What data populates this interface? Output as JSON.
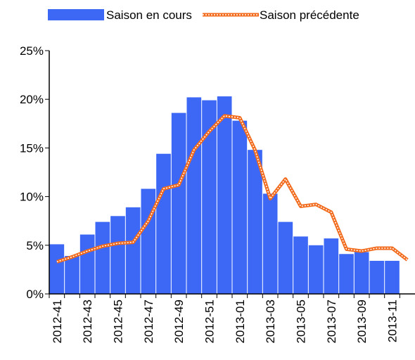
{
  "chart_data": {
    "type": "bar-line",
    "categories": [
      "2012-41",
      null,
      "2012-43",
      null,
      "2012-45",
      null,
      "2012-47",
      null,
      "2012-49",
      null,
      "2012-51",
      null,
      "2013-01",
      null,
      "2013-03",
      null,
      "2013-05",
      null,
      "2013-07",
      null,
      "2013-09",
      null,
      "2013-11",
      null
    ],
    "series": [
      {
        "name": "Saison en cours",
        "type": "bar",
        "color": "#3d68f5",
        "values": [
          5.1,
          3.9,
          6.1,
          7.4,
          8.0,
          8.9,
          10.8,
          14.4,
          18.6,
          20.2,
          19.9,
          20.3,
          17.8,
          14.8,
          10.3,
          7.4,
          5.9,
          5.0,
          5.7,
          4.1,
          4.3,
          3.4,
          3.4,
          null
        ]
      },
      {
        "name": "Saison précédente",
        "type": "line",
        "color": "#f26a1b",
        "values": [
          3.3,
          3.8,
          4.4,
          4.9,
          5.2,
          5.3,
          7.5,
          10.8,
          11.2,
          14.8,
          16.7,
          18.3,
          18.1,
          14.8,
          9.8,
          11.8,
          9.0,
          9.2,
          8.4,
          4.6,
          4.4,
          4.7,
          4.7,
          3.5
        ]
      }
    ],
    "ylim": [
      0,
      25
    ],
    "yticks": [
      {
        "value": 0,
        "label": "0%"
      },
      {
        "value": 5,
        "label": "5%"
      },
      {
        "value": 10,
        "label": "10%"
      },
      {
        "value": 15,
        "label": "15%"
      },
      {
        "value": 20,
        "label": "20%"
      },
      {
        "value": 25,
        "label": "25%"
      }
    ],
    "grid": false,
    "legend": "top"
  }
}
